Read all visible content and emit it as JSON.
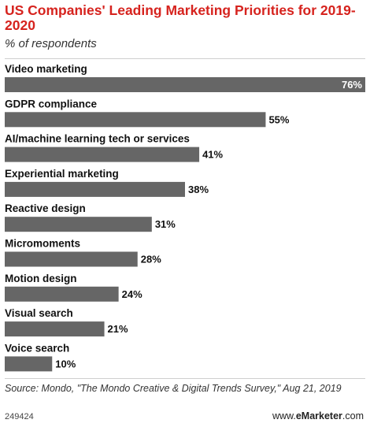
{
  "header": {
    "title": "US Companies' Leading Marketing Priorities for 2019-2020",
    "subtitle": "% of respondents"
  },
  "footer": {
    "source": "Source: Mondo, \"The Mondo Creative & Digital Trends Survey,\" Aug 21, 2019",
    "chart_id": "249424",
    "brand_prefix": "www.",
    "brand_name": "eMarketer",
    "brand_suffix": ".com"
  },
  "colors": {
    "bar": "#666666",
    "title": "#d6231e",
    "value_outside": "#111111",
    "value_inside": "#ffffff"
  },
  "chart_data": {
    "type": "bar",
    "orientation": "horizontal",
    "title": "US Companies' Leading Marketing Priorities for 2019-2020",
    "subtitle": "% of respondents",
    "categories": [
      "Video marketing",
      "GDPR compliance",
      "AI/machine learning tech or services",
      "Experiential marketing",
      "Reactive design",
      "Micromoments",
      "Motion design",
      "Visual search",
      "Voice search"
    ],
    "values": [
      76,
      55,
      41,
      38,
      31,
      28,
      24,
      21,
      10
    ],
    "value_labels": [
      "76%",
      "55%",
      "41%",
      "38%",
      "31%",
      "28%",
      "24%",
      "21%",
      "10%"
    ],
    "unit": "%",
    "xlim": [
      0,
      76
    ],
    "grid": false,
    "legend": "none"
  }
}
